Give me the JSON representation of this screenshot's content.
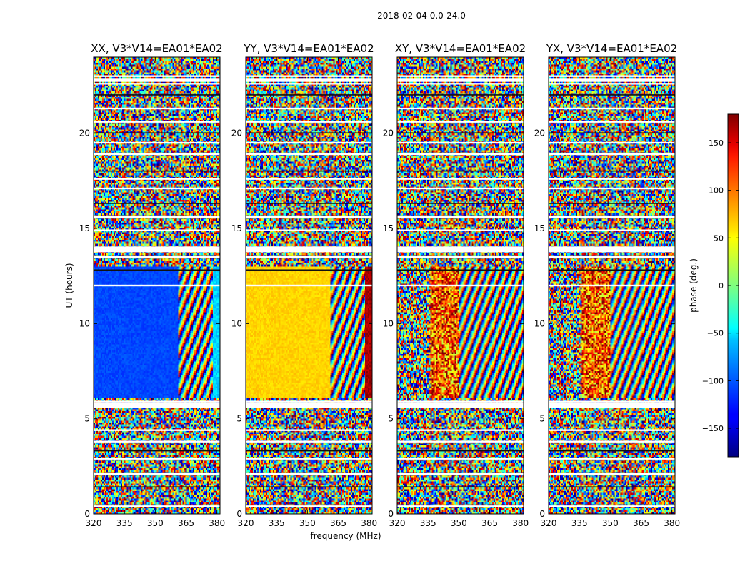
{
  "chart_data": {
    "type": "heatmap",
    "suptitle": "2018-02-04 0.0-24.0",
    "xlabel": "frequency (MHz)",
    "ylabel": "UT (hours)",
    "xlim": [
      320,
      381.5
    ],
    "ylim": [
      0,
      24
    ],
    "x_ticks": [
      320,
      335,
      350,
      365,
      380
    ],
    "y_ticks": [
      0,
      5,
      10,
      15,
      20
    ],
    "panels": [
      {
        "title": "XX, V3*V14=EA01*EA02",
        "smooth_phase_deg": -110,
        "transition_mhz": 361
      },
      {
        "title": "YY, V3*V14=EA01*EA02",
        "smooth_phase_deg": 60,
        "transition_mhz": 361
      },
      {
        "title": "XY, V3*V14=EA01*EA02",
        "smooth_phase_deg": null,
        "transition_mhz": 354
      },
      {
        "title": "YX, V3*V14=EA01*EA02",
        "smooth_phase_deg": null,
        "transition_mhz": 354
      }
    ],
    "phase_smooth_ut_range": [
      6.1,
      13.0
    ],
    "flagged_ut_rows": [
      0.4,
      1.4,
      2.1,
      2.9,
      3.3,
      3.8,
      4.4,
      5.6,
      5.9,
      12.0,
      12.8,
      13.5,
      13.8,
      14.0,
      14.9,
      15.6,
      16.3,
      17.1,
      17.6,
      18.0,
      18.9,
      19.5,
      20.0,
      20.6,
      21.3,
      22.0,
      22.6,
      23.0
    ],
    "colorbar": {
      "label": "phase (deg.)",
      "range": [
        -180,
        180
      ],
      "ticks": [
        -150,
        -100,
        -50,
        0,
        50,
        100,
        150
      ],
      "tick_labels": [
        "−150",
        "−100",
        "−50",
        "0",
        "50",
        "100",
        "150"
      ],
      "colormap": "jet"
    }
  }
}
